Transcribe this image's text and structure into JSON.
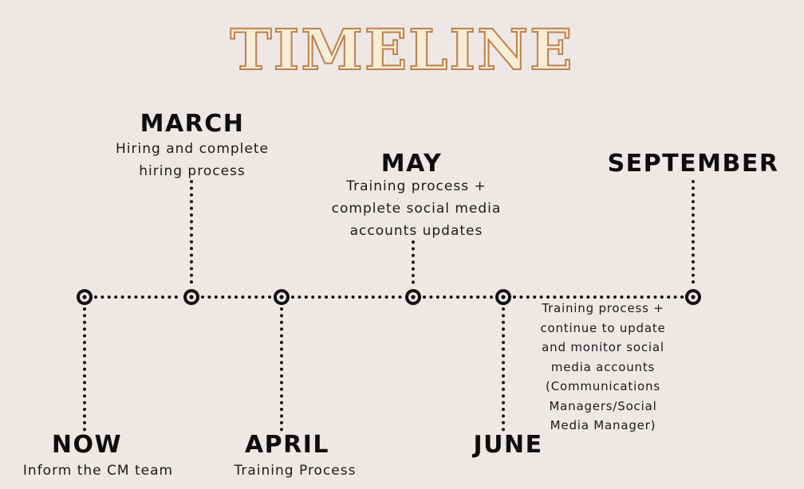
{
  "title": "TIMELINE",
  "colors": {
    "background": "#ede8e6",
    "title_fill": "#f7ecd6",
    "title_outline": "#c0804a",
    "ink": "#111111"
  },
  "milestones": [
    {
      "heading": "NOW",
      "description": "Inform the CM team",
      "position": "below"
    },
    {
      "heading": "MARCH",
      "description": "Hiring and complete\nhiring process",
      "position": "above"
    },
    {
      "heading": "APRIL",
      "description": "Training Process",
      "position": "below"
    },
    {
      "heading": "MAY",
      "description": "Training process +\ncomplete social media\naccounts updates",
      "position": "above"
    },
    {
      "heading": "JUNE",
      "description": "Training process +\ncontinue to update\nand monitor social\nmedia accounts\n(Communications\nManagers/Social\nMedia Manager)",
      "position": "below"
    },
    {
      "heading": "SEPTEMBER",
      "description": "",
      "position": "above"
    }
  ]
}
